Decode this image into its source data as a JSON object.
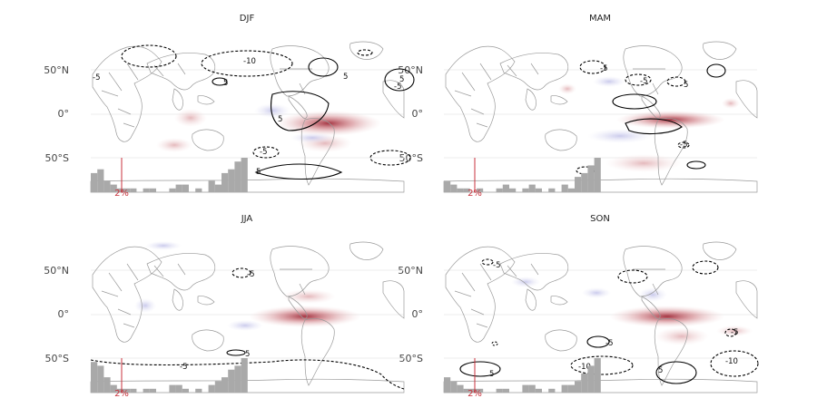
{
  "colors": {
    "positive_anomaly": "#b03a48",
    "negative_anomaly": "#8f8fcf",
    "coast": "#9a9a9a",
    "contour": "#000000",
    "histogram": "#a9a9a9",
    "marker": "#c8323c"
  },
  "y_axis": {
    "ticks": [
      "50°N",
      "0°",
      "50°S"
    ],
    "lat_values": [
      50,
      0,
      -50
    ]
  },
  "histogram_marker_label": "2%",
  "panels": [
    {
      "title": "DJF",
      "contour_labels": [
        "-10",
        "5",
        "-5",
        "5",
        "5",
        "-5",
        "5",
        "5",
        "-5"
      ],
      "histogram": [
        5,
        6,
        3,
        2,
        1,
        1,
        1,
        0,
        1,
        1,
        0,
        0,
        1,
        2,
        2,
        0,
        1,
        0,
        3,
        2,
        5,
        6,
        8,
        9
      ]
    },
    {
      "title": "MAM",
      "contour_labels": [
        "-5",
        "5",
        "-5",
        "-5",
        "-5"
      ],
      "histogram": [
        3,
        2,
        1,
        1,
        0,
        1,
        0,
        0,
        1,
        2,
        1,
        0,
        1,
        2,
        1,
        0,
        1,
        0,
        2,
        1,
        4,
        5,
        7,
        9
      ]
    },
    {
      "title": "JJA",
      "contour_labels": [
        "-5",
        "5",
        "-5"
      ],
      "histogram": [
        8,
        7,
        4,
        2,
        1,
        1,
        1,
        0,
        1,
        1,
        0,
        0,
        2,
        2,
        1,
        0,
        1,
        0,
        2,
        3,
        4,
        6,
        7,
        9
      ]
    },
    {
      "title": "SON",
      "contour_labels": [
        "-5",
        "5",
        "-5",
        "-10",
        "5",
        "-5",
        "-10"
      ],
      "histogram": [
        4,
        3,
        2,
        1,
        1,
        1,
        0,
        0,
        1,
        1,
        0,
        0,
        2,
        2,
        1,
        0,
        1,
        0,
        2,
        2,
        3,
        5,
        7,
        9
      ]
    }
  ]
}
